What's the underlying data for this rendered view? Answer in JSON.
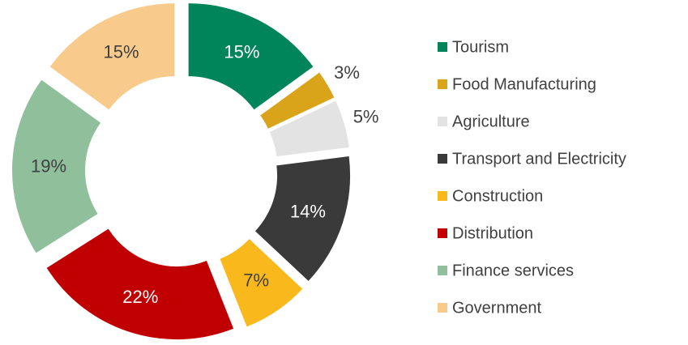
{
  "chart_data": {
    "type": "donut",
    "categories": [
      "Tourism",
      "Food Manufacturing",
      "Agriculture",
      "Transport and Electricity",
      "Construction",
      "Distribution",
      "Finance services",
      "Government"
    ],
    "values": [
      15,
      3,
      5,
      14,
      7,
      22,
      19,
      15
    ],
    "value_labels": [
      "15%",
      "3%",
      "5%",
      "14%",
      "7%",
      "22%",
      "19%",
      "15%"
    ],
    "colors": [
      "#00845a",
      "#d9a31a",
      "#e3e3e3",
      "#3a3a3a",
      "#f9b81b",
      "#c00000",
      "#8fbf9b",
      "#f8cb8c"
    ],
    "legend": "right"
  }
}
